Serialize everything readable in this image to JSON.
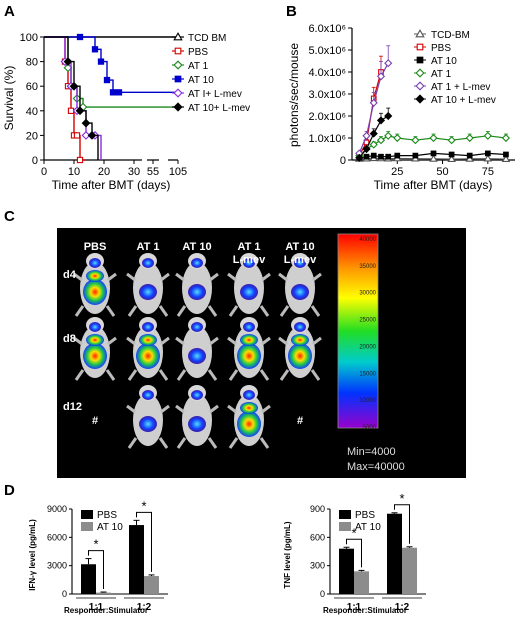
{
  "panels": {
    "A": {
      "label": "A"
    },
    "B": {
      "label": "B"
    },
    "C": {
      "label": "C"
    },
    "D": {
      "label": "D"
    }
  },
  "chart_data": [
    {
      "id": "A",
      "type": "line",
      "step": true,
      "title": "",
      "xlabel": "Time after BMT (days)",
      "ylabel": "Survival (%)",
      "xticks": [
        "0",
        "10",
        "20",
        "30",
        "55",
        "105"
      ],
      "yticks": [
        "0",
        "20",
        "40",
        "60",
        "80",
        "100"
      ],
      "ylim": [
        0,
        100
      ],
      "legend_position": "right",
      "series": [
        {
          "name": "TCD BM",
          "color": "#000000",
          "marker": "triangle-open",
          "x": [
            0,
            105
          ],
          "y": [
            100,
            100
          ]
        },
        {
          "name": "PBS",
          "color": "#d40000",
          "marker": "square-open",
          "x": [
            0,
            7,
            8,
            9,
            10,
            11,
            12,
            14
          ],
          "y": [
            100,
            80,
            60,
            40,
            20,
            20,
            0,
            0
          ]
        },
        {
          "name": "AT 1",
          "color": "#1a8a1a",
          "marker": "diamond-open",
          "x": [
            0,
            8,
            9,
            11,
            13,
            105
          ],
          "y": [
            100,
            75,
            60,
            50,
            43,
            43
          ]
        },
        {
          "name": "AT 10",
          "color": "#0000cc",
          "marker": "square-filled",
          "x": [
            0,
            12,
            17,
            19,
            21,
            23,
            25,
            105
          ],
          "y": [
            100,
            100,
            90,
            80,
            65,
            55,
            55,
            55
          ]
        },
        {
          "name": "AT I+ L-mev",
          "color": "#8a2be2",
          "marker": "diamond-open",
          "x": [
            0,
            7,
            9,
            11,
            14,
            17,
            19
          ],
          "y": [
            100,
            80,
            60,
            40,
            20,
            20,
            0
          ]
        },
        {
          "name": "AT 10+ L-mev",
          "color": "#000000",
          "marker": "diamond-filled",
          "x": [
            0,
            8,
            10,
            12,
            14,
            16,
            18
          ],
          "y": [
            100,
            80,
            60,
            40,
            30,
            20,
            0
          ]
        }
      ]
    },
    {
      "id": "B",
      "type": "line",
      "title": "",
      "xlabel": "Time after BMT (days)",
      "ylabel": "photons/sec/mouse",
      "xticks": [
        "25",
        "50",
        "75"
      ],
      "yticks": [
        "0",
        "1.0x10⁶",
        "2.0x10⁶",
        "3.0x10⁶",
        "4.0x10⁶",
        "5.0x10⁶",
        "6.0x10⁶"
      ],
      "xlim": [
        0,
        90
      ],
      "ylim": [
        0,
        6000000
      ],
      "legend_position": "top-right",
      "series": [
        {
          "name": "TCD-BM",
          "color": "#555555",
          "marker": "triangle-open",
          "x": [
            4,
            8,
            12,
            16,
            20,
            25,
            35,
            45,
            55,
            65,
            75,
            85
          ],
          "y": [
            50000,
            60000,
            80000,
            70000,
            60000,
            70000,
            60000,
            50000,
            40000,
            50000,
            60000,
            40000
          ]
        },
        {
          "name": "PBS",
          "color": "#d40000",
          "marker": "square-open",
          "x": [
            4,
            8,
            12,
            16
          ],
          "y": [
            200000,
            800000,
            2800000,
            4000000
          ]
        },
        {
          "name": "AT 10",
          "color": "#000000",
          "marker": "square-filled",
          "x": [
            4,
            8,
            12,
            16,
            20,
            25,
            35,
            45,
            55,
            65,
            75,
            85
          ],
          "y": [
            100000,
            150000,
            200000,
            150000,
            150000,
            200000,
            200000,
            300000,
            250000,
            200000,
            300000,
            250000
          ]
        },
        {
          "name": "AT 1",
          "color": "#1a8a1a",
          "marker": "diamond-open",
          "x": [
            4,
            8,
            12,
            16,
            20,
            25,
            35,
            45,
            55,
            65,
            75,
            85
          ],
          "y": [
            200000,
            500000,
            700000,
            900000,
            1100000,
            1000000,
            900000,
            1000000,
            900000,
            1000000,
            1100000,
            1000000
          ]
        },
        {
          "name": "AT 1 + L-mev",
          "color": "#7a3fb0",
          "marker": "diamond-open",
          "x": [
            4,
            8,
            12,
            16,
            20
          ],
          "y": [
            300000,
            1100000,
            2600000,
            3800000,
            4400000
          ]
        },
        {
          "name": "AT 10 + L-mev",
          "color": "#000000",
          "marker": "diamond-filled",
          "x": [
            4,
            8,
            12,
            16,
            20
          ],
          "y": [
            100000,
            500000,
            1200000,
            1800000,
            2000000
          ]
        }
      ]
    },
    {
      "id": "D-left",
      "type": "bar",
      "title": "",
      "ylabel": "IFN-γ level (pg/mL)",
      "xlabel": "Responder:Stimulator",
      "categories": [
        "1:1",
        "1:2"
      ],
      "yticks": [
        "0",
        "3000",
        "6000",
        "9000"
      ],
      "ylim": [
        0,
        9000
      ],
      "legend_position": "top-left",
      "significance": [
        "*",
        "*"
      ],
      "series": [
        {
          "name": "PBS",
          "color": "#000000",
          "values": [
            3150,
            7300
          ],
          "errors": [
            600,
            500
          ]
        },
        {
          "name": "AT 10",
          "color": "#8c8c8c",
          "values": [
            150,
            1900
          ],
          "errors": [
            60,
            120
          ]
        }
      ]
    },
    {
      "id": "D-right",
      "type": "bar",
      "title": "",
      "ylabel": "TNF level (pg/mL)",
      "xlabel": "Responder:Stimulator",
      "categories": [
        "1:1",
        "1:2"
      ],
      "yticks": [
        "0",
        "300",
        "600",
        "900"
      ],
      "ylim": [
        0,
        900
      ],
      "legend_position": "top-left",
      "significance": [
        "*",
        "*"
      ],
      "series": [
        {
          "name": "PBS",
          "color": "#000000",
          "values": [
            480,
            850
          ],
          "errors": [
            15,
            10
          ]
        },
        {
          "name": "AT 10",
          "color": "#8c8c8c",
          "values": [
            240,
            490
          ],
          "errors": [
            10,
            10
          ]
        }
      ]
    }
  ],
  "imaging": {
    "columns": [
      "PBS",
      "AT 1",
      "AT 10",
      "AT 1\nL-mev",
      "AT 10\nL-mev"
    ],
    "rows": [
      "d4",
      "d8",
      "d12"
    ],
    "dead_marker": "#",
    "dead_cells": [
      "0-2",
      "4-2"
    ],
    "colorbar_ticks": [
      "40000",
      "35000",
      "30000",
      "25000",
      "20000",
      "15000",
      "10000",
      "5000"
    ],
    "min_label": "Min=4000",
    "max_label": "Max=40000"
  }
}
